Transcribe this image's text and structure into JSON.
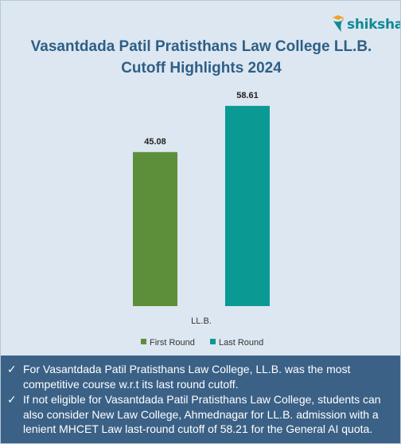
{
  "brand": {
    "name": "shiksha"
  },
  "chart_data": {
    "type": "bar",
    "title": "Vasantdada Patil Pratisthans Law College LL.B. Cutoff Highlights 2024",
    "title_lines": [
      "Vasantdada Patil Pratisthans Law College LL.B.",
      "Cutoff Highlights 2024"
    ],
    "categories": [
      "LL.B."
    ],
    "series": [
      {
        "name": "First Round",
        "values": [
          45.08
        ],
        "color": "#5d8f3a"
      },
      {
        "name": "Last Round",
        "values": [
          58.61
        ],
        "color": "#0a9a93"
      }
    ],
    "value_labels": [
      "45.08",
      "58.61"
    ],
    "ylim": [
      0,
      70
    ],
    "grid": false,
    "legend_position": "bottom"
  },
  "notes": [
    "For Vasantdada Patil Pratisthans Law College, LL.B. was the most competitive course w.r.t its last round cutoff.",
    "If not eligible for Vasantdada Patil Pratisthans Law College, students can also consider New Law College, Ahmednagar for LL.B. admission with a lenient MHCET Law last-round cutoff of 58.21 for the General AI quota."
  ],
  "check_glyph": "✓"
}
